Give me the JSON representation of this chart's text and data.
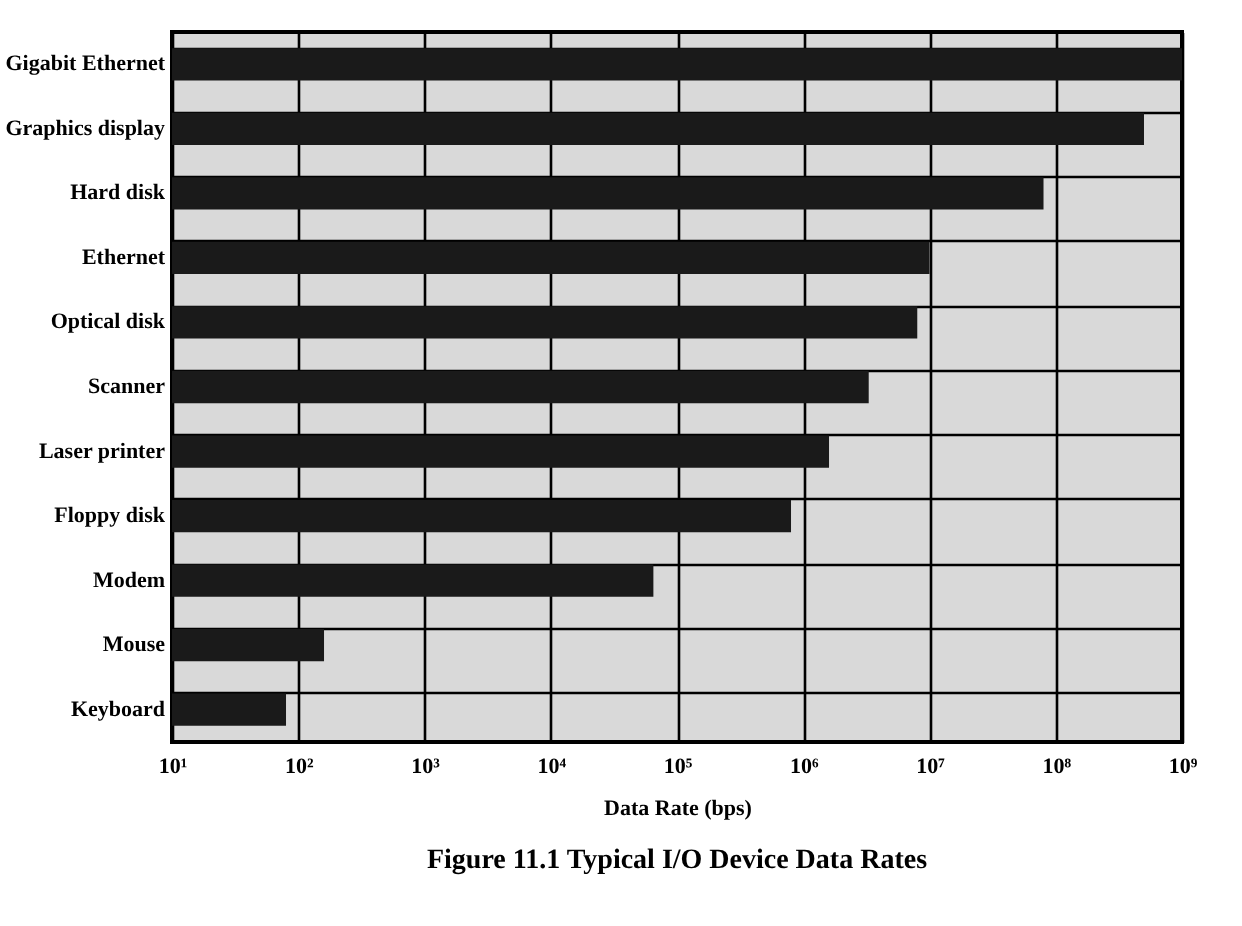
{
  "chart_data": {
    "type": "bar",
    "orientation": "horizontal",
    "title": "Figure 11.1  Typical I/O Device Data Rates",
    "xlabel": "Data Rate (bps)",
    "categories": [
      "Gigabit Ethernet",
      "Graphics display",
      "Hard disk",
      "Ethernet",
      "Optical disk",
      "Scanner",
      "Laser printer",
      "Floppy disk",
      "Modem",
      "Mouse",
      "Keyboard"
    ],
    "values": [
      1000000000,
      500000000,
      80000000,
      10000000,
      8000000,
      3300000,
      1600000,
      800000,
      65000,
      160,
      80
    ],
    "color": "#1a1a1a",
    "log": "x",
    "xlim": [
      10,
      1000000000
    ],
    "xticks": [
      {
        "value": 10,
        "label": "10¹"
      },
      {
        "value": 100,
        "label": "10²"
      },
      {
        "value": 1000,
        "label": "10³"
      },
      {
        "value": 10000,
        "label": "10⁴"
      },
      {
        "value": 100000,
        "label": "10⁵"
      },
      {
        "value": 1000000,
        "label": "10⁶"
      },
      {
        "value": 10000000,
        "label": "10⁷"
      },
      {
        "value": 100000000,
        "label": "10⁸"
      },
      {
        "value": 1000000000,
        "label": "10⁹"
      }
    ],
    "grid": true
  }
}
